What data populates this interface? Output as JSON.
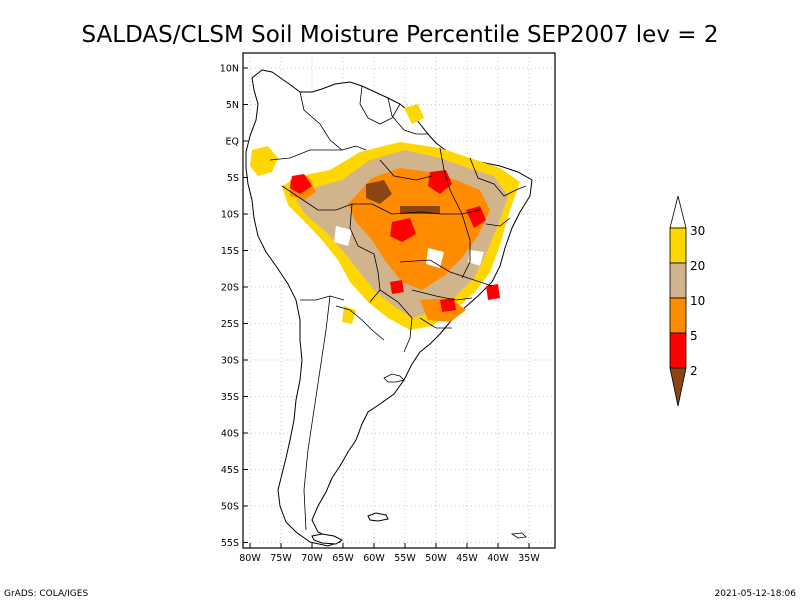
{
  "title": "SALDAS/CLSM Soil Moisture Percentile SEP2007 lev = 2",
  "lat_ticks": [
    "10N",
    "5N",
    "EQ",
    "5S",
    "10S",
    "15S",
    "20S",
    "25S",
    "30S",
    "35S",
    "40S",
    "45S",
    "50S",
    "55S"
  ],
  "lon_ticks": [
    "80W",
    "75W",
    "70W",
    "65W",
    "60W",
    "55W",
    "50W",
    "45W",
    "40W",
    "35W"
  ],
  "colorbar": {
    "labels": [
      "2",
      "5",
      "10",
      "20",
      "30"
    ],
    "colors": {
      "below_2": "#8b4513",
      "2_to_5": "#ff0000",
      "5_to_10": "#ff8c00",
      "10_to_20": "#d2b48c",
      "20_to_30": "#ffd700",
      "above_30": "#ffffff"
    }
  },
  "footer": {
    "left": "GrADS: COLA/IGES",
    "right": "2021-05-12-18:06"
  }
}
